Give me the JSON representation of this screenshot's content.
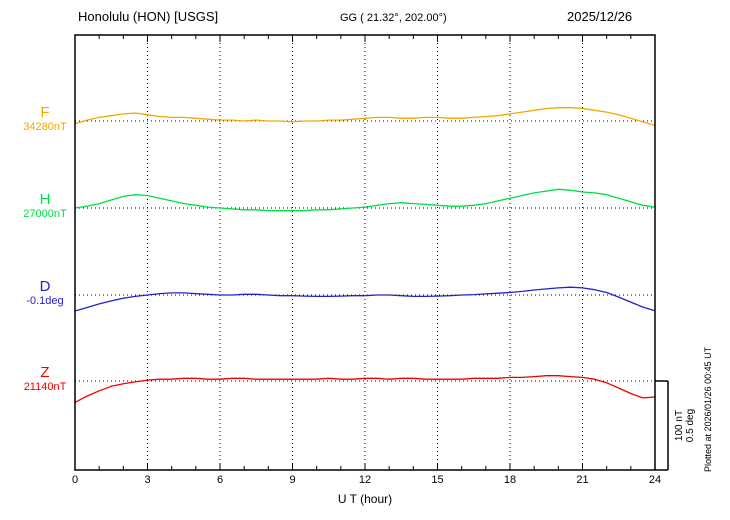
{
  "header": {
    "station": "Honolulu (HON)  [USGS]",
    "coords": "GG ( 21.32°, 202.00°)",
    "date": "2025/12/26"
  },
  "axis": {
    "x_label": "U T (hour)",
    "x_ticks": [
      "0",
      "3",
      "6",
      "9",
      "12",
      "15",
      "18",
      "21",
      "24"
    ],
    "x_tick_hours": [
      0,
      3,
      6,
      9,
      12,
      15,
      18,
      21,
      24
    ]
  },
  "scale_bar": {
    "line1": "100 nT",
    "line2": "0.5 deg"
  },
  "footer_note": "Plotted at 2026/01/26 00:45 UT",
  "chart_data": {
    "type": "line",
    "title": "Honolulu (HON) [USGS] magnetogram 2025/12/26",
    "x_unit": "hour UT",
    "x_range": [
      0,
      24
    ],
    "grid": "dotted vertical every 3 h, dotted baseline per channel",
    "scale": {
      "nT_per_division": 100,
      "deg_per_division": 0.5
    },
    "series": [
      {
        "name": "F",
        "unit": "nT",
        "baseline_label": "34280nT",
        "baseline_value": 34280,
        "color": "#f0a800",
        "points": [
          [
            0,
            -3
          ],
          [
            0.5,
            1
          ],
          [
            1,
            4
          ],
          [
            1.5,
            6
          ],
          [
            2,
            8
          ],
          [
            2.5,
            9
          ],
          [
            3,
            7
          ],
          [
            3.5,
            5
          ],
          [
            4,
            4
          ],
          [
            4.5,
            4
          ],
          [
            5,
            3
          ],
          [
            5.5,
            2
          ],
          [
            6,
            1
          ],
          [
            6.5,
            1
          ],
          [
            7,
            0
          ],
          [
            7.5,
            1
          ],
          [
            8,
            0
          ],
          [
            8.5,
            0
          ],
          [
            9,
            -1
          ],
          [
            9.5,
            0
          ],
          [
            10,
            0
          ],
          [
            10.5,
            1
          ],
          [
            11,
            1
          ],
          [
            11.5,
            2
          ],
          [
            12,
            3
          ],
          [
            12.5,
            4
          ],
          [
            13,
            4
          ],
          [
            13.5,
            3
          ],
          [
            14,
            3
          ],
          [
            14.5,
            4
          ],
          [
            15,
            4
          ],
          [
            15.5,
            3
          ],
          [
            16,
            3
          ],
          [
            16.5,
            4
          ],
          [
            17,
            5
          ],
          [
            17.5,
            6
          ],
          [
            18,
            8
          ],
          [
            18.5,
            10
          ],
          [
            19,
            12
          ],
          [
            19.5,
            14
          ],
          [
            20,
            15
          ],
          [
            20.5,
            15
          ],
          [
            21,
            14
          ],
          [
            21.5,
            12
          ],
          [
            22,
            10
          ],
          [
            22.5,
            7
          ],
          [
            23,
            3
          ],
          [
            23.5,
            -1
          ],
          [
            24,
            -5
          ]
        ]
      },
      {
        "name": "H",
        "unit": "nT",
        "baseline_label": "27000nT",
        "baseline_value": 27000,
        "color": "#00dd44",
        "points": [
          [
            0,
            0
          ],
          [
            0.5,
            2
          ],
          [
            1,
            5
          ],
          [
            1.5,
            9
          ],
          [
            2,
            13
          ],
          [
            2.5,
            15
          ],
          [
            3,
            14
          ],
          [
            3.5,
            11
          ],
          [
            4,
            8
          ],
          [
            4.5,
            5
          ],
          [
            5,
            3
          ],
          [
            5.5,
            1
          ],
          [
            6,
            0
          ],
          [
            6.5,
            -1
          ],
          [
            7,
            -2
          ],
          [
            7.5,
            -2
          ],
          [
            8,
            -3
          ],
          [
            8.5,
            -3
          ],
          [
            9,
            -3
          ],
          [
            9.5,
            -3
          ],
          [
            10,
            -2
          ],
          [
            10.5,
            -2
          ],
          [
            11,
            -1
          ],
          [
            11.5,
            0
          ],
          [
            12,
            1
          ],
          [
            12.5,
            3
          ],
          [
            13,
            5
          ],
          [
            13.5,
            6
          ],
          [
            14,
            5
          ],
          [
            14.5,
            4
          ],
          [
            15,
            3
          ],
          [
            15.5,
            2
          ],
          [
            16,
            2
          ],
          [
            16.5,
            3
          ],
          [
            17,
            5
          ],
          [
            17.5,
            8
          ],
          [
            18,
            11
          ],
          [
            18.5,
            14
          ],
          [
            19,
            17
          ],
          [
            19.5,
            19
          ],
          [
            20,
            21
          ],
          [
            20.5,
            20
          ],
          [
            21,
            18
          ],
          [
            21.5,
            17
          ],
          [
            22,
            15
          ],
          [
            22.5,
            11
          ],
          [
            23,
            7
          ],
          [
            23.5,
            3
          ],
          [
            24,
            1
          ]
        ]
      },
      {
        "name": "D",
        "unit": "deg",
        "baseline_label": "-0.1deg",
        "baseline_value": -0.1,
        "color": "#2222cc",
        "points": [
          [
            0,
            -0.09
          ],
          [
            0.5,
            -0.07
          ],
          [
            1,
            -0.05
          ],
          [
            1.5,
            -0.033
          ],
          [
            2,
            -0.018
          ],
          [
            2.5,
            -0.008
          ],
          [
            3,
            0
          ],
          [
            3.5,
            0.008
          ],
          [
            4,
            0.012
          ],
          [
            4.5,
            0.012
          ],
          [
            5,
            0.008
          ],
          [
            5.5,
            0.004
          ],
          [
            6,
            0
          ],
          [
            6.5,
            0
          ],
          [
            7,
            0.004
          ],
          [
            7.5,
            0.004
          ],
          [
            8,
            0
          ],
          [
            8.5,
            -0.004
          ],
          [
            9,
            -0.004
          ],
          [
            9.5,
            -0.006
          ],
          [
            10,
            -0.008
          ],
          [
            10.5,
            -0.008
          ],
          [
            11,
            -0.006
          ],
          [
            11.5,
            -0.004
          ],
          [
            12,
            -0.004
          ],
          [
            12.5,
            0
          ],
          [
            13,
            0
          ],
          [
            13.5,
            -0.004
          ],
          [
            14,
            -0.008
          ],
          [
            14.5,
            -0.008
          ],
          [
            15,
            -0.006
          ],
          [
            15.5,
            -0.004
          ],
          [
            16,
            0
          ],
          [
            16.5,
            0.002
          ],
          [
            17,
            0.006
          ],
          [
            17.5,
            0.01
          ],
          [
            18,
            0.014
          ],
          [
            18.5,
            0.02
          ],
          [
            19,
            0.028
          ],
          [
            19.5,
            0.034
          ],
          [
            20,
            0.04
          ],
          [
            20.5,
            0.044
          ],
          [
            21,
            0.04
          ],
          [
            21.5,
            0.03
          ],
          [
            22,
            0.014
          ],
          [
            22.5,
            -0.012
          ],
          [
            23,
            -0.04
          ],
          [
            23.5,
            -0.068
          ],
          [
            24,
            -0.088
          ]
        ]
      },
      {
        "name": "Z",
        "unit": "nT",
        "baseline_label": "21140nT",
        "baseline_value": 21140,
        "color": "#ee0000",
        "points": [
          [
            0,
            -24
          ],
          [
            0.5,
            -17
          ],
          [
            1,
            -11
          ],
          [
            1.5,
            -6
          ],
          [
            2,
            -3
          ],
          [
            2.5,
            -1
          ],
          [
            3,
            1
          ],
          [
            3.5,
            2
          ],
          [
            4,
            2
          ],
          [
            4.5,
            3
          ],
          [
            5,
            3
          ],
          [
            5.5,
            2
          ],
          [
            6,
            2
          ],
          [
            6.5,
            3
          ],
          [
            7,
            3
          ],
          [
            7.5,
            2
          ],
          [
            8,
            2
          ],
          [
            8.5,
            2
          ],
          [
            9,
            2
          ],
          [
            9.5,
            2
          ],
          [
            10,
            2
          ],
          [
            10.5,
            3
          ],
          [
            11,
            2
          ],
          [
            11.5,
            2
          ],
          [
            12,
            3
          ],
          [
            12.5,
            3
          ],
          [
            13,
            2
          ],
          [
            13.5,
            3
          ],
          [
            14,
            3
          ],
          [
            14.5,
            2
          ],
          [
            15,
            2
          ],
          [
            15.5,
            2
          ],
          [
            16,
            2
          ],
          [
            16.5,
            3
          ],
          [
            17,
            3
          ],
          [
            17.5,
            3
          ],
          [
            18,
            4
          ],
          [
            18.5,
            4
          ],
          [
            19,
            5
          ],
          [
            19.5,
            6
          ],
          [
            20,
            6
          ],
          [
            20.5,
            5
          ],
          [
            21,
            4
          ],
          [
            21.5,
            2
          ],
          [
            22,
            -2
          ],
          [
            22.5,
            -8
          ],
          [
            23,
            -14
          ],
          [
            23.5,
            -19
          ],
          [
            24,
            -18
          ]
        ]
      }
    ]
  }
}
